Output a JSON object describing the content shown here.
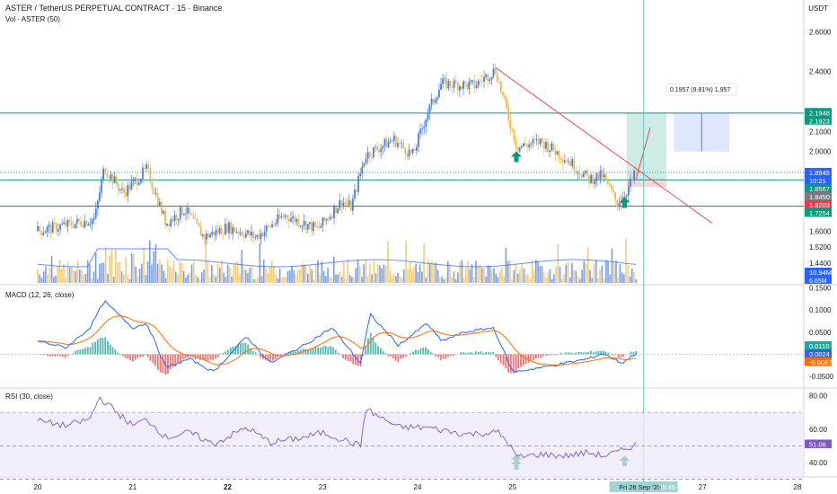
{
  "header": {
    "title": "ASTER / TetherUS PERPETUAL CONTRACT · 15 · Binance",
    "volume_label": "Vol · ASTER (50)",
    "currency": "USDT",
    "macd_label": "MACD (12, 26, close)",
    "rsi_label": "RSI (30, close)"
  },
  "colors": {
    "up": "#4a7ee0",
    "down": "#f2b94a",
    "macd_line": "#2962ff",
    "signal_line": "#ff6d00",
    "hist_up": "#26a69a",
    "hist_down": "#ef5350",
    "rsi_line": "#7e57c2",
    "rsi_band": "#ede7f6",
    "level_line": "#089981",
    "trend_line": "#f23645"
  },
  "chart_data": {
    "type": "candlestick",
    "xlabels": [
      "20",
      "21",
      "22",
      "23",
      "24",
      "25",
      "Fri 26 Sep '25",
      "27",
      "28"
    ],
    "time_label": "05:45",
    "price_axis": {
      "ticks": [
        "2.6000",
        "2.4000",
        "2.2000",
        "2.1000",
        "2.0000",
        "1.8000",
        "1.7254",
        "1.6000",
        "1.5200",
        "1.4400",
        "1.3700"
      ],
      "range": [
        1.34,
        2.66
      ]
    },
    "price_tags": [
      {
        "label": "2.1948",
        "type": "level"
      },
      {
        "label": "2.1923",
        "type": "level"
      },
      {
        "label": "1.8945",
        "type": "price"
      },
      {
        "label": "10:21",
        "type": "countdown"
      },
      {
        "label": "1.8567",
        "type": "level"
      },
      {
        "label": "1.8450",
        "type": "info"
      },
      {
        "label": "1.8203",
        "type": "stop"
      },
      {
        "label": "1.7254",
        "type": "level"
      }
    ],
    "levels": [
      2.1923,
      1.8567,
      1.7254
    ],
    "current_price": 1.8945,
    "price_key_points": [
      [
        "20",
        1.6
      ],
      [
        "20.6",
        1.66
      ],
      [
        "20.7",
        1.92
      ],
      [
        "20.9",
        1.79
      ],
      [
        "21.15",
        1.91
      ],
      [
        "21.35",
        1.64
      ],
      [
        "21.55",
        1.71
      ],
      [
        "21.75",
        1.57
      ],
      [
        "22",
        1.62
      ],
      [
        "22.3",
        1.57
      ],
      [
        "22.6",
        1.68
      ],
      [
        "22.95",
        1.61
      ],
      [
        "23.2",
        1.75
      ],
      [
        "23.3",
        1.72
      ],
      [
        "23.45",
        1.98
      ],
      [
        "23.75",
        2.06
      ],
      [
        "23.95",
        1.98
      ],
      [
        "24.1",
        2.19
      ],
      [
        "24.25",
        2.34
      ],
      [
        "24.6",
        2.33
      ],
      [
        "24.82",
        2.41
      ],
      [
        "24.95",
        2.18
      ],
      [
        "25.05",
        2.02
      ],
      [
        "25.3",
        2.05
      ],
      [
        "25.6",
        1.95
      ],
      [
        "25.8",
        1.86
      ],
      [
        "25.95",
        1.88
      ],
      [
        "26.1",
        1.74
      ],
      [
        "26.2",
        1.8
      ],
      [
        "26.3",
        1.8945
      ]
    ],
    "trendline": {
      "from": [
        "24.82",
        2.42
      ],
      "to": [
        "27.1",
        1.64
      ]
    },
    "long_position": {
      "label": "0.1957 (9.81%) 1,957",
      "entry": 1.8567,
      "target": 2.1923,
      "stop": 1.8203
    },
    "macd": {
      "ticks": [
        "0.1500",
        "0.1000",
        "0.0500",
        "-0.0500"
      ],
      "range": [
        -0.072,
        0.155
      ],
      "tags": [
        "0.0110",
        "0.0024",
        "-0.0087"
      ],
      "key_points": [
        [
          "20",
          0.03
        ],
        [
          "20.3",
          0.015
        ],
        [
          "20.55",
          0.06
        ],
        [
          "20.7",
          0.12
        ],
        [
          "21",
          0.06
        ],
        [
          "21.15",
          0.07
        ],
        [
          "21.35",
          -0.03
        ],
        [
          "21.6",
          -0.01
        ],
        [
          "21.85",
          -0.04
        ],
        [
          "22.2",
          0.04
        ],
        [
          "22.45",
          -0.02
        ],
        [
          "22.8",
          0.02
        ],
        [
          "23.1",
          0.06
        ],
        [
          "23.4",
          -0.02
        ],
        [
          "23.5",
          0.09
        ],
        [
          "23.8",
          0.02
        ],
        [
          "24.1",
          0.07
        ],
        [
          "24.25",
          0.03
        ],
        [
          "24.5",
          0.05
        ],
        [
          "24.8",
          0.06
        ],
        [
          "25",
          -0.04
        ],
        [
          "25.3",
          -0.03
        ],
        [
          "25.55",
          -0.02
        ],
        [
          "25.8",
          -0.01
        ],
        [
          "25.95",
          0.002
        ],
        [
          "26.15",
          -0.02
        ],
        [
          "26.3",
          0.0024
        ]
      ]
    },
    "rsi": {
      "ticks": [
        "80.00",
        "60.00",
        "40.00"
      ],
      "range": [
        32,
        84
      ],
      "tag": "51.06",
      "band": [
        30,
        70
      ],
      "key_points": [
        [
          "20",
          65
        ],
        [
          "20.3",
          62
        ],
        [
          "20.55",
          66
        ],
        [
          "20.65",
          79
        ],
        [
          "21",
          62
        ],
        [
          "21.15",
          66
        ],
        [
          "21.35",
          55
        ],
        [
          "21.6",
          58
        ],
        [
          "21.85",
          51
        ],
        [
          "22.2",
          61
        ],
        [
          "22.45",
          52
        ],
        [
          "22.8",
          55
        ],
        [
          "23",
          58
        ],
        [
          "23.4",
          50
        ],
        [
          "23.45",
          72
        ],
        [
          "23.8",
          61
        ],
        [
          "24.1",
          61
        ],
        [
          "24.5",
          57
        ],
        [
          "24.85",
          58
        ],
        [
          "24.95",
          52
        ],
        [
          "25.05",
          43
        ],
        [
          "25.3",
          45
        ],
        [
          "25.55",
          44
        ],
        [
          "25.8",
          46
        ],
        [
          "25.95",
          44
        ],
        [
          "26.1",
          46
        ],
        [
          "26.3",
          51.06
        ]
      ]
    },
    "volume": {
      "tags": [
        "10.94M",
        "6.65M"
      ]
    }
  }
}
